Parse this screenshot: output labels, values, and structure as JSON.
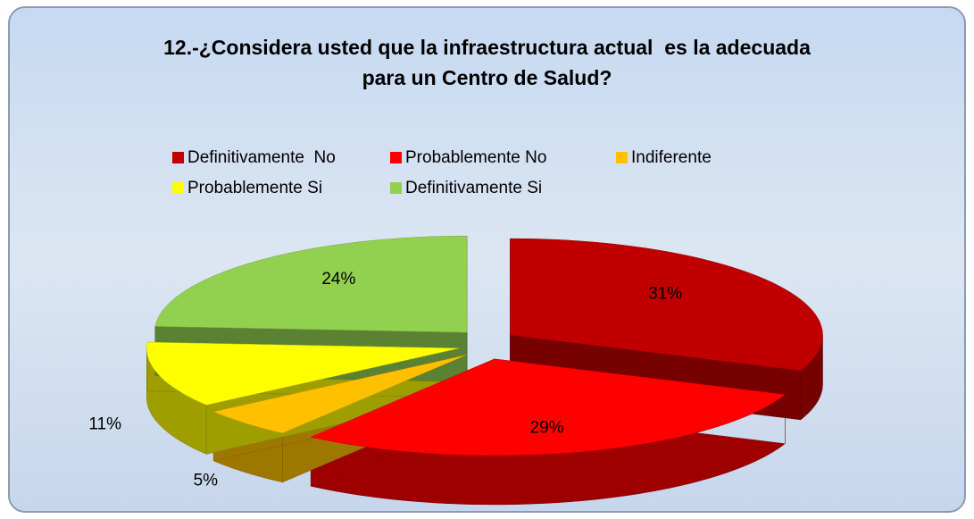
{
  "chart_data": {
    "type": "pie",
    "title": "12.-¿Considera usted que la infraestructura actual  es la adecuada\npara un Centro de Salud?",
    "categories": [
      "Definitivamente  No",
      "Probablemente No",
      "Indiferente",
      "Probablemente Si",
      "Definitivamente Si"
    ],
    "values": [
      31,
      29,
      5,
      11,
      24
    ],
    "value_labels": [
      "31%",
      "29%",
      "5%",
      "11%",
      "24%"
    ],
    "colors": [
      "#c00000",
      "#ff0000",
      "#ffc000",
      "#ffff00",
      "#92d050"
    ],
    "legend": "top"
  }
}
